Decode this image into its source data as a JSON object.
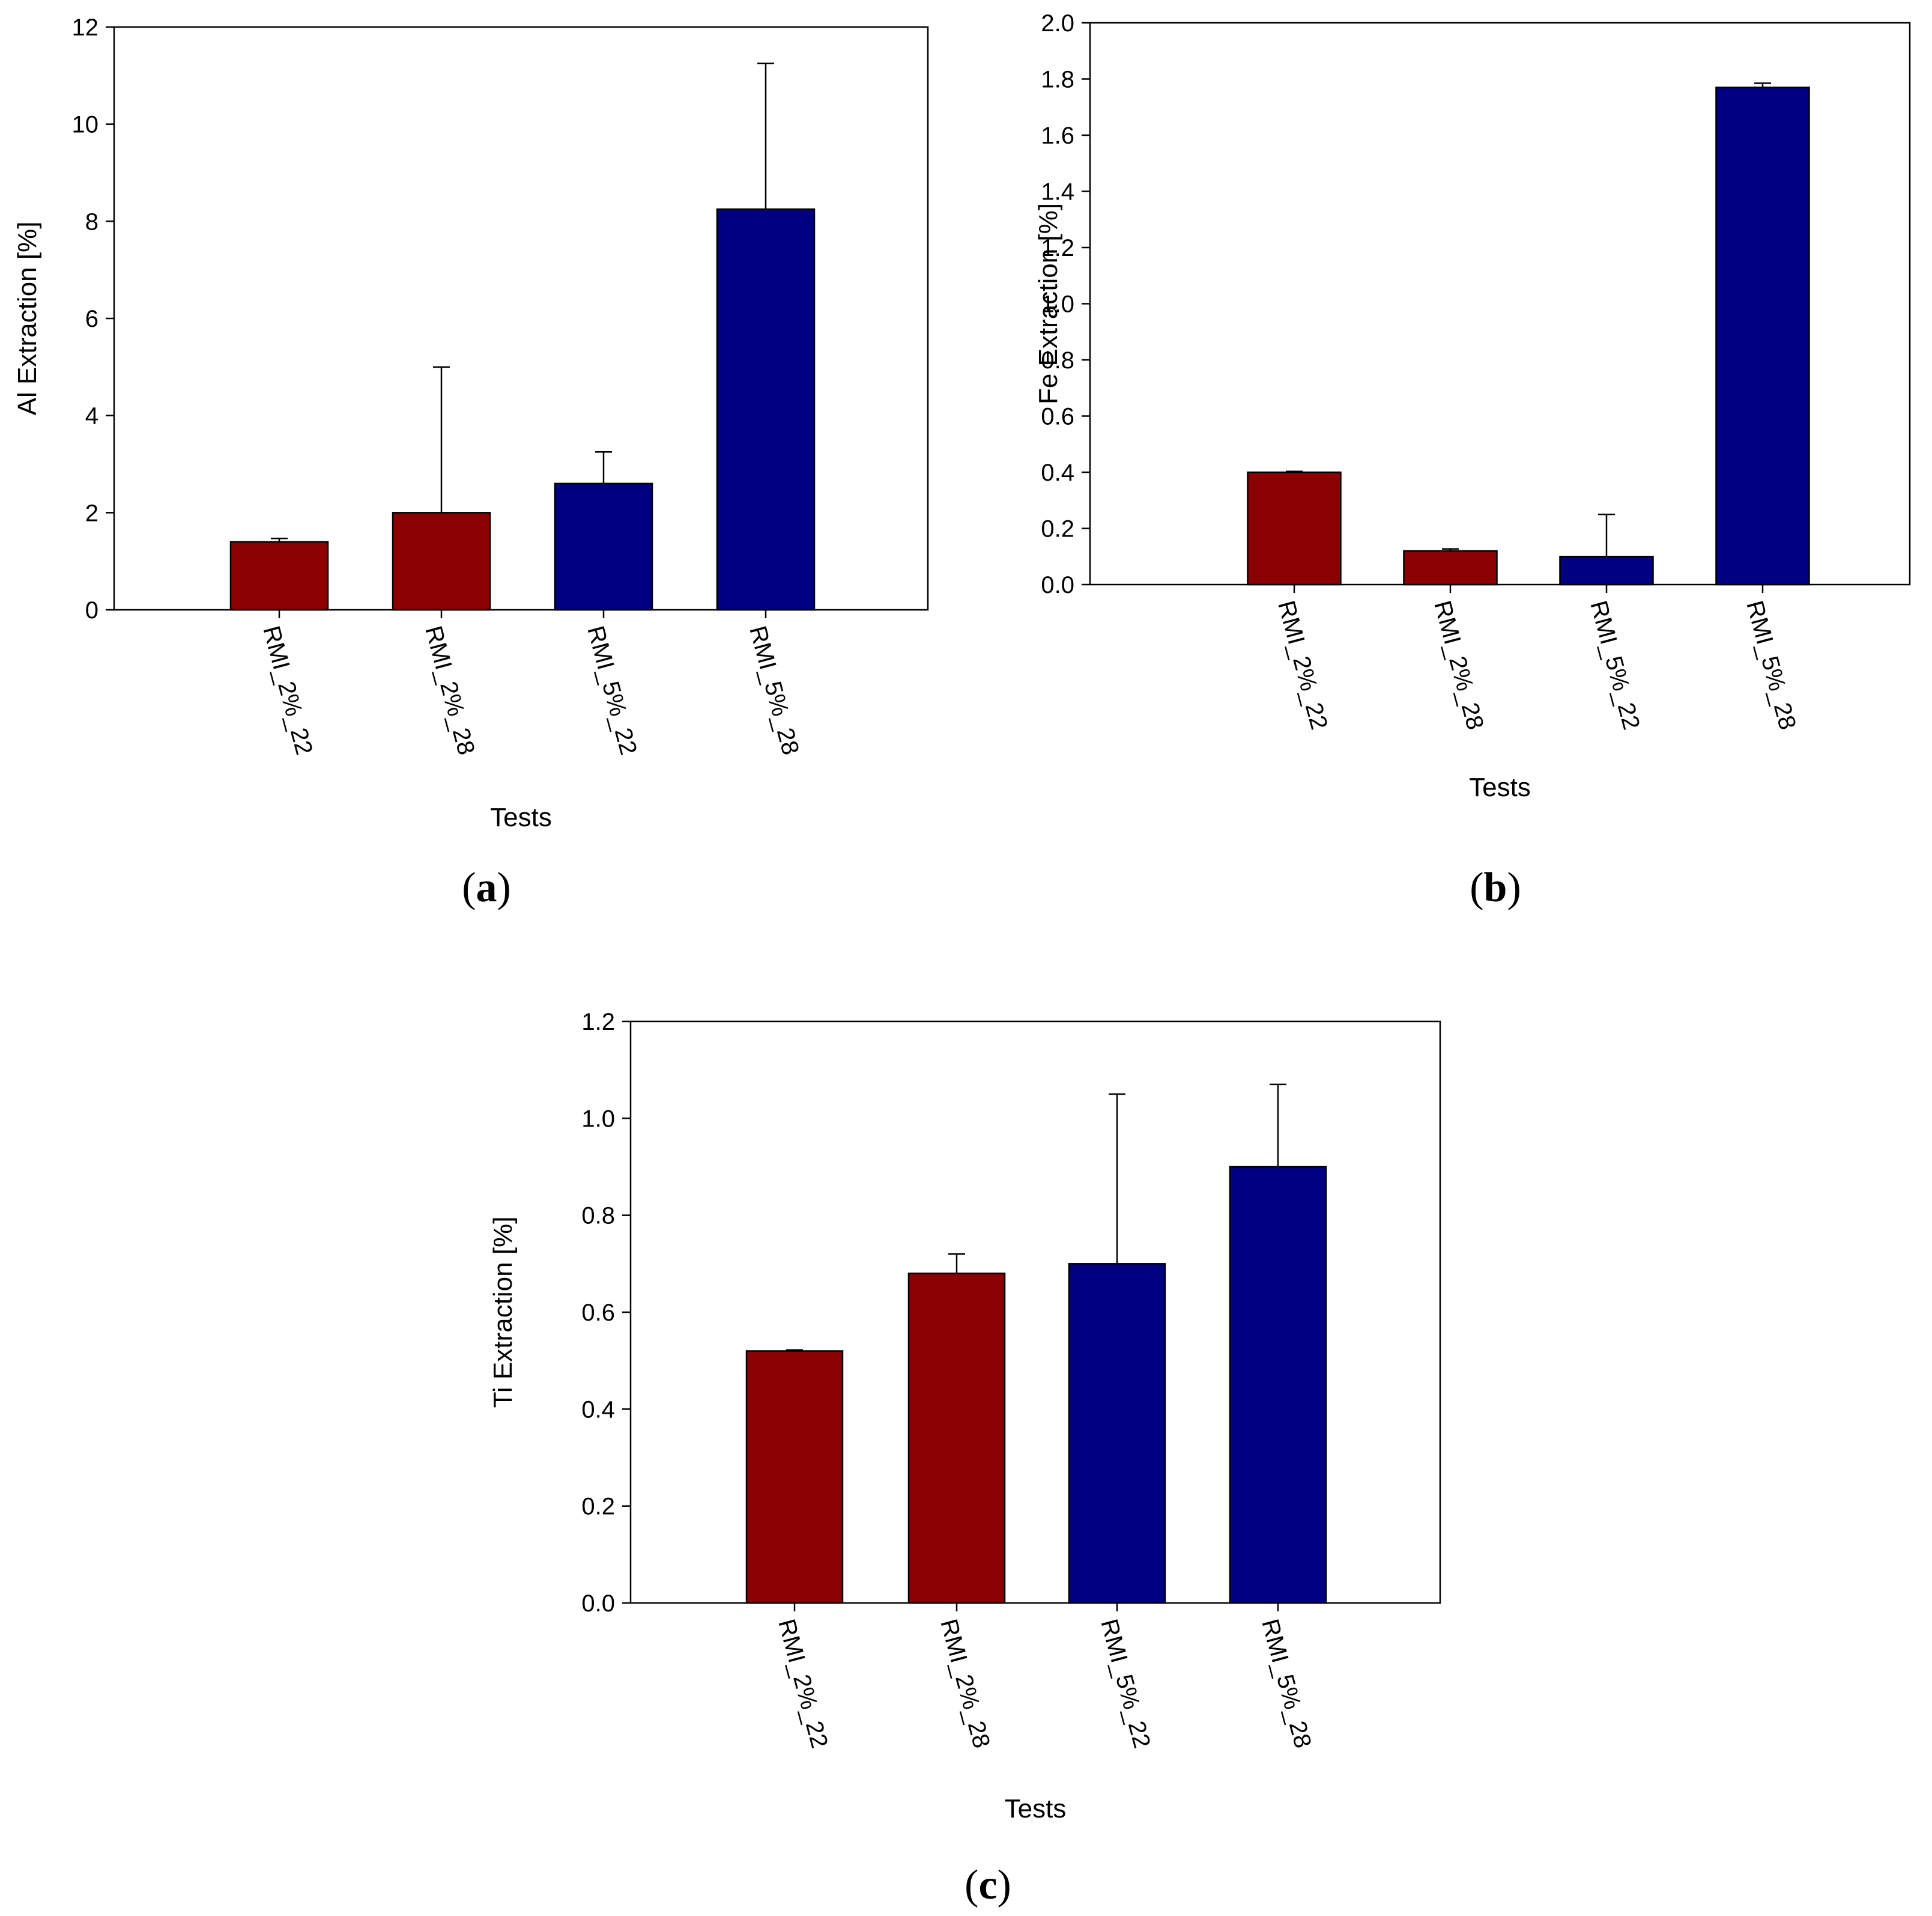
{
  "colors": {
    "red_bar": "#8b0000",
    "blue_bar": "#000080",
    "axis": "#000000",
    "background": "#ffffff"
  },
  "chart_data": [
    {
      "id": "a",
      "type": "bar",
      "panel_label": "a",
      "xlabel": "Tests",
      "ylabel": "Al Extraction [%]",
      "ylim": [
        0,
        12
      ],
      "yticks": [
        "0",
        "2",
        "4",
        "6",
        "8",
        "10",
        "12"
      ],
      "ytick_values": [
        0,
        2,
        4,
        6,
        8,
        10,
        12
      ],
      "categories": [
        "RMI_2%_22",
        "RMI_2%_28",
        "RMI_5%_22",
        "RMI_5%_28"
      ],
      "values": [
        1.4,
        2.0,
        2.6,
        8.25
      ],
      "errors": [
        0.07,
        3.0,
        0.65,
        3.0
      ],
      "bar_colors": [
        "#8b0000",
        "#8b0000",
        "#000080",
        "#000080"
      ]
    },
    {
      "id": "b",
      "type": "bar",
      "panel_label": "b",
      "xlabel": "Tests",
      "ylabel": "Fe Extraction [%]",
      "ylim": [
        0,
        2.0
      ],
      "yticks": [
        "0.0",
        "0.2",
        "0.4",
        "0.6",
        "0.8",
        "1.0",
        "1.2",
        "1.4",
        "1.6",
        "1.8",
        "2.0"
      ],
      "ytick_values": [
        0,
        0.2,
        0.4,
        0.6,
        0.8,
        1.0,
        1.2,
        1.4,
        1.6,
        1.8,
        2.0
      ],
      "categories": [
        "RMI_2%_22",
        "RMI_2%_28",
        "RMI_5%_22",
        "RMI_5%_28"
      ],
      "values": [
        0.4,
        0.12,
        0.1,
        1.77
      ],
      "errors": [
        0.003,
        0.007,
        0.15,
        0.015
      ],
      "bar_colors": [
        "#8b0000",
        "#8b0000",
        "#000080",
        "#000080"
      ]
    },
    {
      "id": "c",
      "type": "bar",
      "panel_label": "c",
      "xlabel": "Tests",
      "ylabel": "Ti Extraction [%]",
      "ylim": [
        0,
        1.2
      ],
      "yticks": [
        "0.0",
        "0.2",
        "0.4",
        "0.6",
        "0.8",
        "1.0",
        "1.2"
      ],
      "ytick_values": [
        0,
        0.2,
        0.4,
        0.6,
        0.8,
        1.0,
        1.2
      ],
      "categories": [
        "RMI_2%_22",
        "RMI_2%_28",
        "RMI_5%_22",
        "RMI_5%_28"
      ],
      "values": [
        0.52,
        0.68,
        0.7,
        0.9
      ],
      "errors": [
        0.002,
        0.04,
        0.35,
        0.17
      ],
      "bar_colors": [
        "#8b0000",
        "#8b0000",
        "#000080",
        "#000080"
      ]
    }
  ]
}
